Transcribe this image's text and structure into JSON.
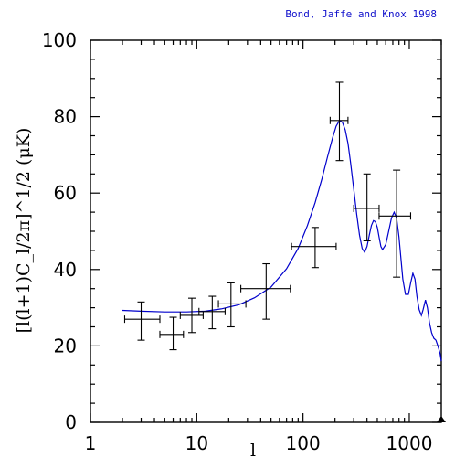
{
  "credit": "Bond, Jaffe and Knox 1998",
  "colors": {
    "model_curve": "#0000cc",
    "credit_text": "#1010cc",
    "data_points": "#000000"
  },
  "chart_data": {
    "type": "scatter",
    "x_scale": "log",
    "xlim": [
      1,
      2000
    ],
    "ylim": [
      0,
      100
    ],
    "xlabel": "l",
    "ylabel": "[l(l+1)C_l/2π]^1/2  (μK)",
    "x_ticks": [
      1,
      10,
      100,
      1000
    ],
    "x_tick_labels": [
      "1",
      "10",
      "100",
      "1000"
    ],
    "y_ticks": [
      0,
      20,
      40,
      60,
      80,
      100
    ],
    "y_tick_labels": [
      "0",
      "20",
      "40",
      "60",
      "80",
      "100"
    ],
    "grid": false,
    "series": [
      {
        "kind": "points_with_errorbars",
        "points": [
          {
            "x": 3,
            "y": 27,
            "xerr": [
              2.1,
              4.5
            ],
            "yerr": [
              21.5,
              31.5
            ]
          },
          {
            "x": 6,
            "y": 23,
            "xerr": [
              4.5,
              7.5
            ],
            "yerr": [
              19,
              27.5
            ]
          },
          {
            "x": 9,
            "y": 28,
            "xerr": [
              7,
              11.5
            ],
            "yerr": [
              23.5,
              32.5
            ]
          },
          {
            "x": 14,
            "y": 29,
            "xerr": [
              10.5,
              18.5
            ],
            "yerr": [
              24.5,
              33
            ]
          },
          {
            "x": 21,
            "y": 31,
            "xerr": [
              16,
              29
            ],
            "yerr": [
              25,
              36.5
            ]
          },
          {
            "x": 45,
            "y": 35,
            "xerr": [
              26,
              76
            ],
            "yerr": [
              27,
              41.5
            ]
          },
          {
            "x": 130,
            "y": 46,
            "xerr": [
              78,
              205
            ],
            "yerr": [
              40.5,
              51
            ]
          },
          {
            "x": 220,
            "y": 79,
            "xerr": [
              180,
              265
            ],
            "yerr": [
              68.5,
              89
            ]
          },
          {
            "x": 400,
            "y": 56,
            "xerr": [
              300,
              520
            ],
            "yerr": [
              47.5,
              65
            ]
          },
          {
            "x": 760,
            "y": 54,
            "xerr": [
              520,
              1030
            ],
            "yerr": [
              38,
              66
            ]
          }
        ]
      },
      {
        "kind": "model_curve",
        "x": [
          2,
          3,
          5,
          8,
          12,
          17,
          25,
          35,
          50,
          70,
          90,
          110,
          130,
          150,
          170,
          190,
          205,
          220,
          235,
          250,
          265,
          280,
          300,
          320,
          340,
          360,
          380,
          400,
          420,
          440,
          460,
          480,
          500,
          520,
          540,
          560,
          600,
          640,
          680,
          720,
          760,
          800,
          830,
          870,
          920,
          980,
          1030,
          1080,
          1130,
          1180,
          1240,
          1300,
          1350,
          1420,
          1480,
          1550,
          1620,
          1700,
          1780,
          1860,
          1950,
          2000
        ],
        "y": [
          29.3,
          29.1,
          28.9,
          28.9,
          29.1,
          29.7,
          30.8,
          32.6,
          35.4,
          40.2,
          45.5,
          51.5,
          57.5,
          63.5,
          69.5,
          74.5,
          77.5,
          79,
          78.5,
          76.5,
          73,
          68,
          61,
          54.5,
          49,
          45.5,
          44.5,
          46,
          49,
          51.5,
          52.8,
          52.5,
          51,
          48.5,
          46,
          45.2,
          46.5,
          50,
          53.5,
          55,
          53.5,
          48.5,
          43.5,
          37.5,
          33.5,
          33.5,
          36.5,
          39,
          37.5,
          33,
          29.5,
          28,
          29.5,
          32,
          30,
          26,
          23.5,
          22,
          21.5,
          20,
          18,
          16
        ]
      }
    ]
  }
}
